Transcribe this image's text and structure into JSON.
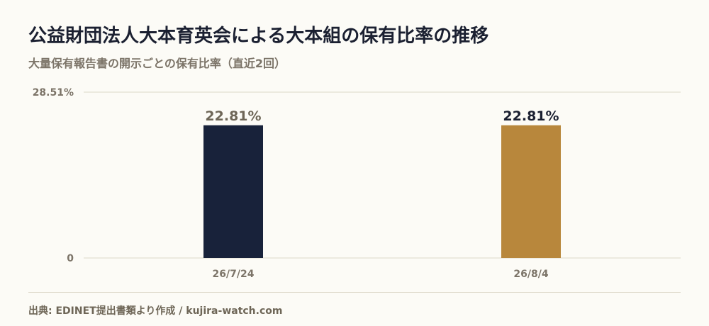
{
  "title": "公益財団法人大本育英会による大本組の保有比率の推移",
  "subtitle": "大量保有報告書の開示ごとの保有比率（直近2回）",
  "footer": "出典: EDINET提出書類より作成 / kujira-watch.com",
  "colors": {
    "background": "#fcfbf6",
    "bar_first": "#18223a",
    "bar_second": "#b8873c",
    "grid": "#ddd8c8",
    "axis_text": "#7c7468",
    "label_muted": "#6e6657",
    "label_strong": "#1b2031"
  },
  "chart_data": {
    "type": "bar",
    "categories": [
      "26/7/24",
      "26/8/4"
    ],
    "values": [
      22.81,
      22.81
    ],
    "value_labels": [
      "22.81%",
      "22.81%"
    ],
    "ylim": [
      0,
      28.51
    ],
    "y_ticks": [
      "0",
      "28.51%"
    ],
    "grid": true
  }
}
